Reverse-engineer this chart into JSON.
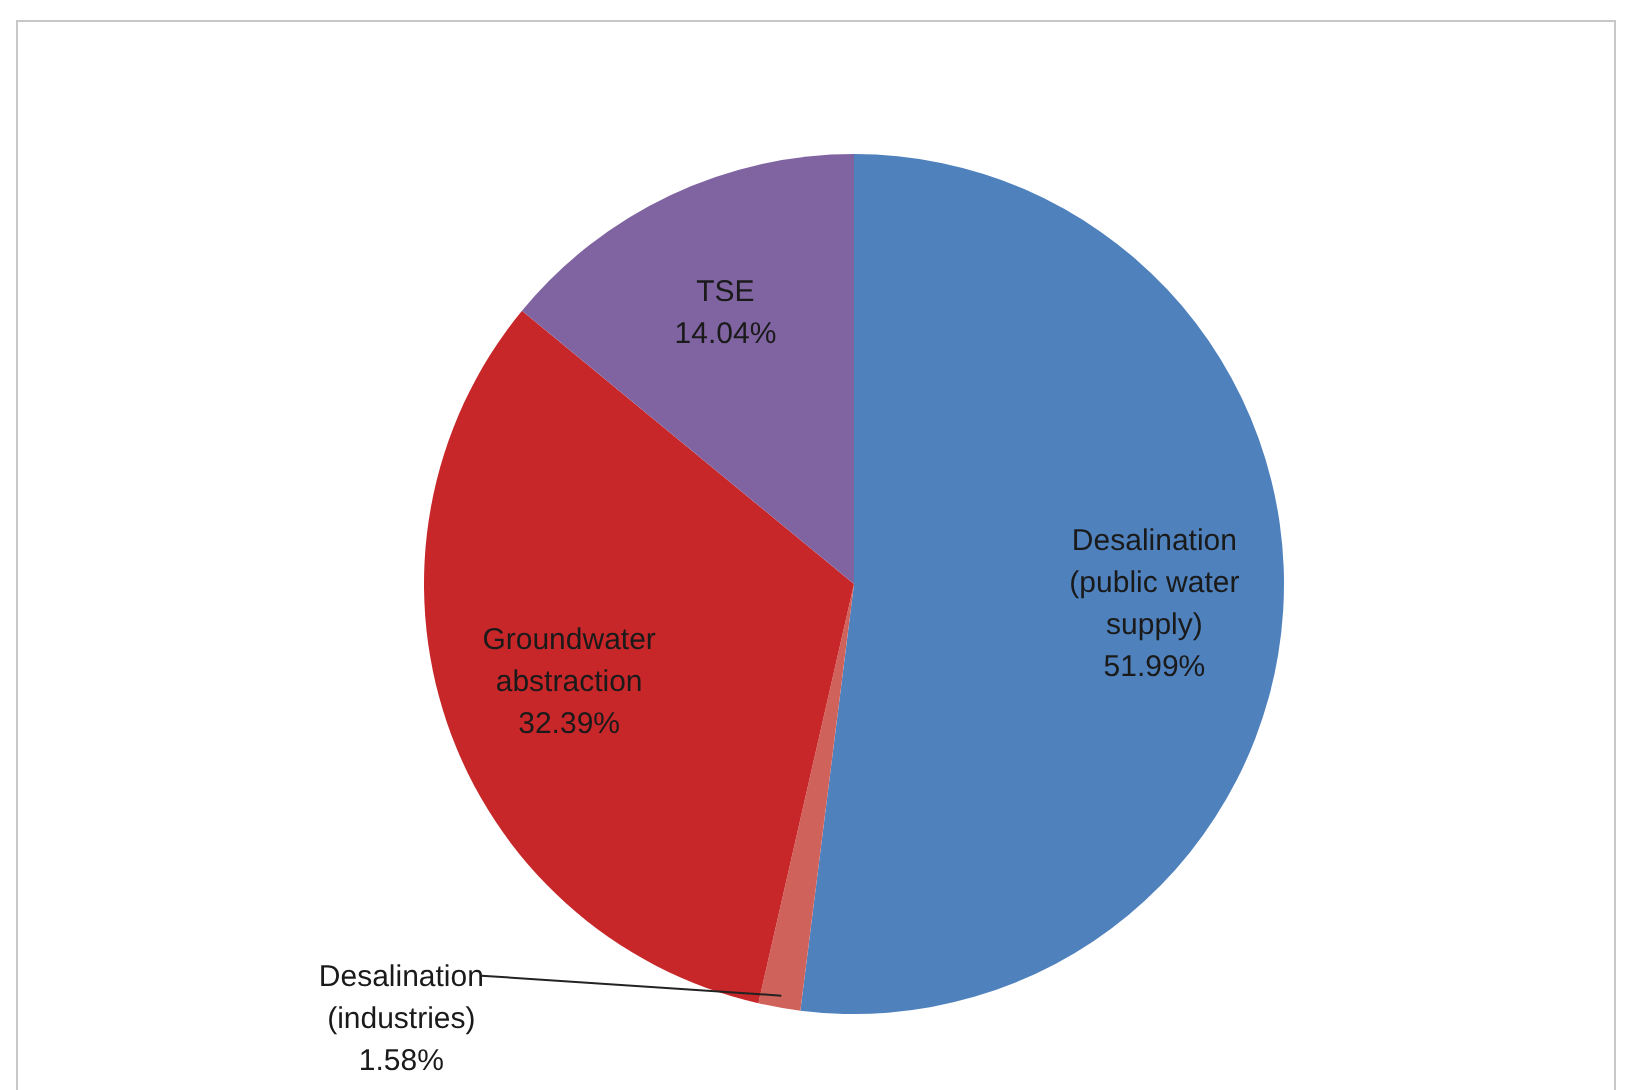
{
  "chart_data": {
    "type": "pie",
    "categories": [
      "Desalination (public water supply)",
      "Desalination (industries)",
      "Groundwater abstraction",
      "TSE"
    ],
    "values": [
      51.99,
      1.58,
      32.39,
      14.04
    ],
    "colors": [
      "#4f81bd",
      "#d0625c",
      "#c8272a",
      "#8064a2"
    ],
    "value_labels": [
      "51.99%",
      "1.58%",
      "32.39%",
      "14.04%"
    ],
    "legend": false
  }
}
